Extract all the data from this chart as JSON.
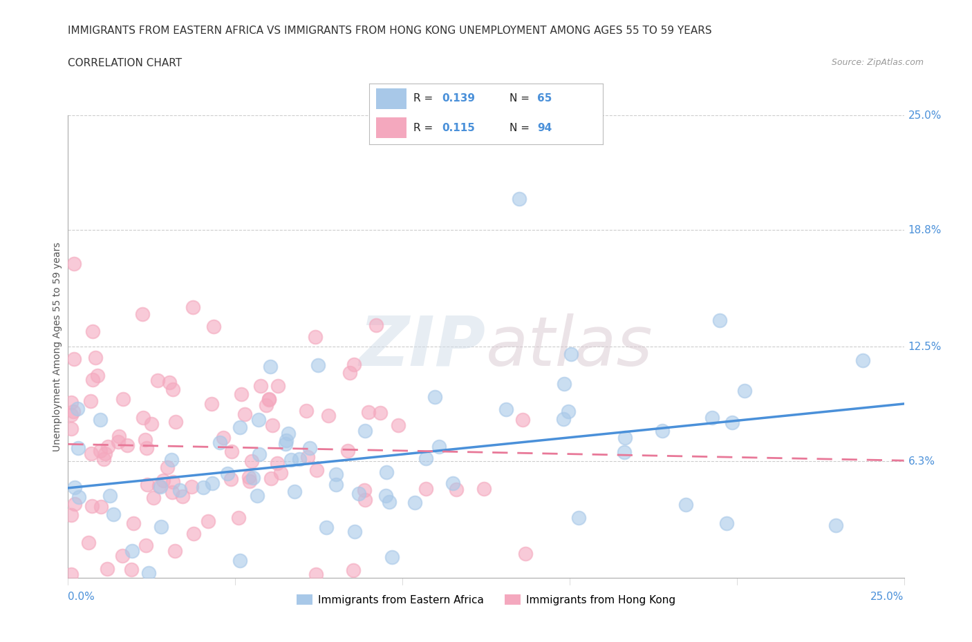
{
  "title_line1": "IMMIGRANTS FROM EASTERN AFRICA VS IMMIGRANTS FROM HONG KONG UNEMPLOYMENT AMONG AGES 55 TO 59 YEARS",
  "title_line2": "CORRELATION CHART",
  "source_text": "Source: ZipAtlas.com",
  "ylabel": "Unemployment Among Ages 55 to 59 years",
  "xlim": [
    0.0,
    0.25
  ],
  "ylim": [
    0.0,
    0.25
  ],
  "ytick_labels_right": [
    "25.0%",
    "18.8%",
    "12.5%",
    "6.3%"
  ],
  "ytick_values_right": [
    0.25,
    0.188,
    0.125,
    0.063
  ],
  "color_eastern_africa": "#a8c8e8",
  "color_hong_kong": "#f4a8be",
  "color_line_eastern_africa": "#4a90d9",
  "color_line_hong_kong": "#e87898",
  "watermark_zip": "ZIP",
  "watermark_atlas": "atlas",
  "eastern_africa_R": 0.139,
  "eastern_africa_N": 65,
  "hong_kong_R": 0.115,
  "hong_kong_N": 94,
  "title_fontsize": 11,
  "axis_label_fontsize": 10,
  "tick_label_fontsize": 11,
  "legend_fontsize": 12
}
